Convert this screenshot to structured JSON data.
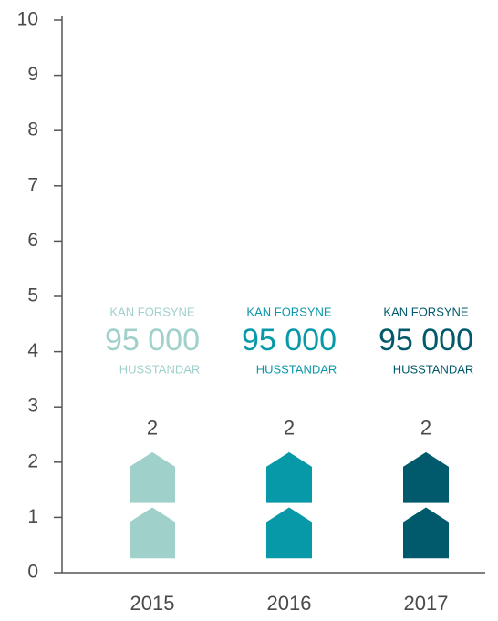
{
  "chart_data": {
    "type": "bar",
    "categories": [
      "2015",
      "2016",
      "2017"
    ],
    "values": [
      2,
      2,
      2
    ],
    "colors": [
      "#a0d0ca",
      "#0899a9",
      "#005a6b"
    ],
    "ylim": [
      0,
      10
    ],
    "yticks": [
      0,
      1,
      2,
      3,
      4,
      5,
      6,
      7,
      8,
      9,
      10
    ],
    "annotations": [
      {
        "top": "KAN FORSYNE",
        "value": "95 000",
        "bottom": "HUSSTANDAR"
      },
      {
        "top": "KAN FORSYNE",
        "value": "95 000",
        "bottom": "HUSSTANDAR"
      },
      {
        "top": "KAN FORSYNE",
        "value": "95 000",
        "bottom": "HUSSTANDAR"
      }
    ]
  }
}
